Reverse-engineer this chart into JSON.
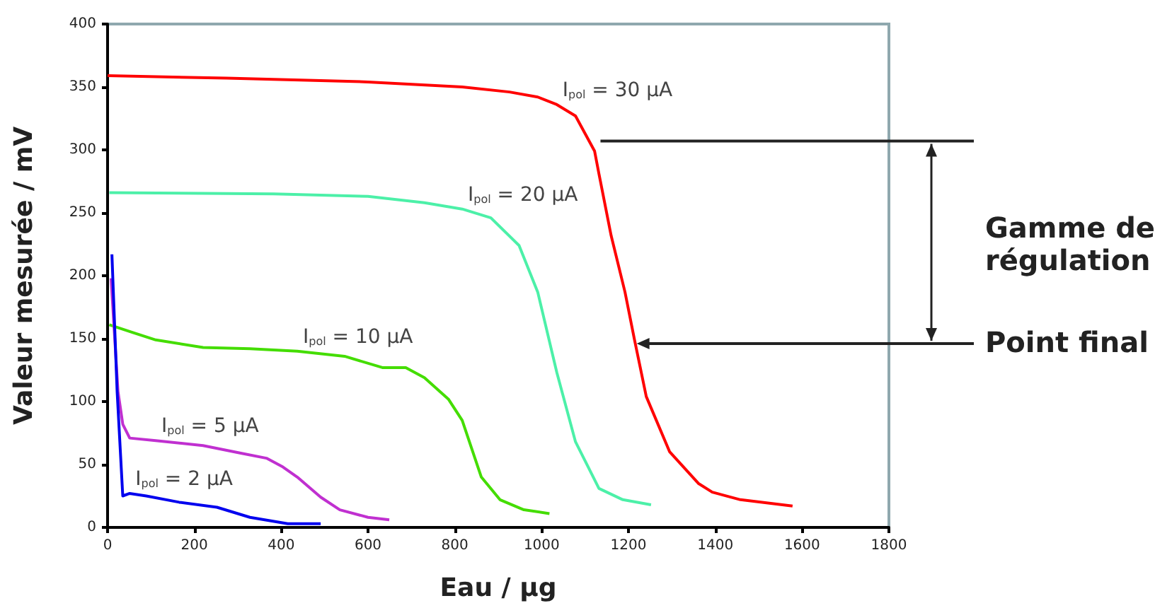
{
  "chart_data": {
    "type": "line",
    "xlabel": "Eau / µg",
    "ylabel": "Valeur mesurée / mV",
    "xlim": [
      0,
      1800
    ],
    "xticks": [
      0,
      200,
      400,
      600,
      800,
      1000,
      1200,
      1400,
      1600,
      1800
    ],
    "ylim": [
      0,
      400
    ],
    "yticks": [
      0,
      50,
      100,
      150,
      200,
      250,
      300,
      350,
      400
    ],
    "grid": false,
    "legend": false,
    "marker": "none",
    "line_style": "solid",
    "series": [
      {
        "name": "I$_{pol}$ = 30 µA",
        "color": "#ff0000",
        "x": [
          0,
          274,
          600,
          817,
          926,
          991,
          1035,
          1078,
          1122,
          1132,
          1160,
          1192,
          1214,
          1241,
          1295,
          1361,
          1393,
          1458,
          1578
        ],
        "values": [
          359,
          357,
          354,
          350,
          346,
          342,
          336,
          327,
          299,
          281,
          232,
          187,
          149,
          104,
          60,
          35,
          28,
          22,
          17
        ]
      },
      {
        "name": "I$_{pol}$ = 20 µA",
        "color": "#4cf0a8",
        "x": [
          4,
          383,
          600,
          730,
          817,
          883,
          948,
          991,
          1035,
          1078,
          1132,
          1187,
          1252
        ],
        "values": [
          266,
          265,
          263,
          258,
          253,
          246,
          224,
          187,
          123,
          68,
          31,
          22,
          18
        ]
      },
      {
        "name": "I$_{pol}$ = 10 µA",
        "color": "#44dd00",
        "x": [
          4,
          57,
          111,
          220,
          328,
          437,
          546,
          633,
          687,
          730,
          785,
          817,
          861,
          904,
          959,
          1018
        ],
        "values": [
          161,
          155,
          149,
          143,
          142,
          140,
          136,
          127,
          127,
          119,
          102,
          85,
          40,
          22,
          14,
          11
        ]
      },
      {
        "name": "I$_{pol}$ = 5 µA",
        "color": "#c030d0",
        "x": [
          8,
          24,
          35,
          51,
          111,
          220,
          307,
          366,
          404,
          437,
          491,
          535,
          600,
          649
        ],
        "values": [
          198,
          108,
          82,
          71,
          69,
          65,
          59,
          55,
          48,
          40,
          24,
          14,
          8,
          6
        ]
      },
      {
        "name": "I$_{pol}$ = 2 µA",
        "color": "#0000ee",
        "x": [
          10,
          22,
          35,
          51,
          89,
          165,
          252,
          328,
          415,
          491
        ],
        "values": [
          217,
          108,
          25,
          27,
          25,
          20,
          16,
          8,
          3,
          3
        ]
      }
    ],
    "ref_lines": [
      {
        "axis": "y",
        "value": 307,
        "label": "Gamme de régulation",
        "color": "#222222"
      }
    ],
    "annotations": [
      {
        "text": "Point final",
        "x": 1219,
        "y": 146
      }
    ]
  }
}
